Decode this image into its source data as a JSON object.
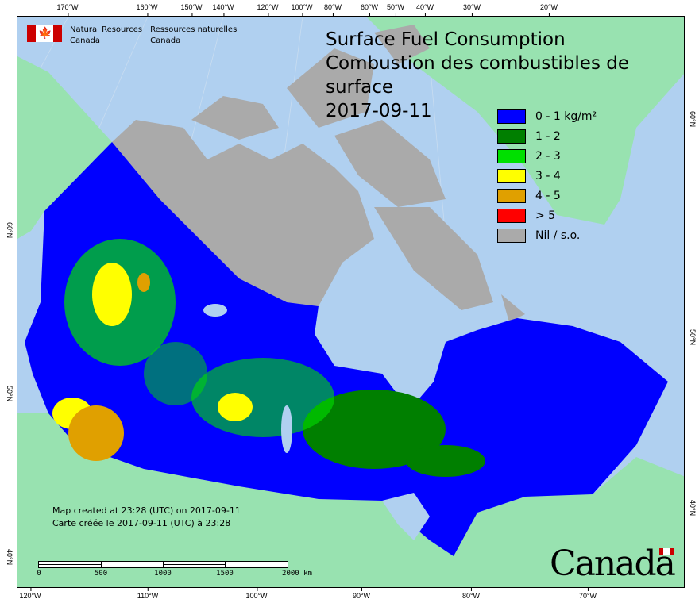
{
  "header": {
    "title_en": "Surface Fuel Consumption",
    "title_fr": "Combustion des combustibles de surface",
    "date": "2017-09-11"
  },
  "agency": {
    "name_en_line1": "Natural Resources",
    "name_en_line2": "Canada",
    "name_fr_line1": "Ressources naturelles",
    "name_fr_line2": "Canada"
  },
  "legend": [
    {
      "label": "0 - 1 kg/m²",
      "color": "#0000ff"
    },
    {
      "label": "1 - 2",
      "color": "#007f00"
    },
    {
      "label": "2 - 3",
      "color": "#00e000"
    },
    {
      "label": "3 - 4",
      "color": "#ffff00"
    },
    {
      "label": "4 - 5",
      "color": "#e0a000"
    },
    {
      "label": "> 5",
      "color": "#ff0000"
    },
    {
      "label": "Nil / s.o.",
      "color": "#aaaaaa"
    }
  ],
  "credit": {
    "line_en": "Map created at 23:28 (UTC) on 2017-09-11",
    "line_fr": "Carte créée le 2017-09-11 (UTC) à 23:28"
  },
  "scale_bar": {
    "labels": [
      "0",
      "500",
      "1000",
      "1500",
      "2000 km"
    ]
  },
  "graticule": {
    "top": [
      "170°W",
      "160°W",
      "150°W",
      "140°W",
      "120°W",
      "100°W",
      "80°W",
      "60°W",
      "50°W",
      "40°W",
      "30°W",
      "20°W"
    ],
    "bottom": [
      "120°W",
      "110°W",
      "100°W",
      "90°W",
      "80°W",
      "70°W"
    ],
    "left": [
      "60°N",
      "50°N",
      "40°N"
    ],
    "right": [
      "60°N",
      "50°N",
      "40°N"
    ]
  },
  "wordmark": "Canada",
  "colors": {
    "ocean": "#b0d0f0",
    "foreign_land": "#98e2b0",
    "nil": "#aaaaaa"
  }
}
